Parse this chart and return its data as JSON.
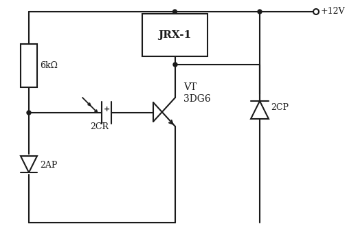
{
  "bg_color": "#ffffff",
  "line_color": "#1a1a1a",
  "resistor_label": "6kΩ",
  "relay_label": "JRX-1",
  "diode_label": "2CP",
  "transistor_label1": "VT",
  "transistor_label2": "3DG6",
  "photo_cell_label": "2CR",
  "diode2_label": "2AP",
  "supply_label": "+12V",
  "figsize": [
    5.05,
    3.42
  ],
  "dpi": 100
}
